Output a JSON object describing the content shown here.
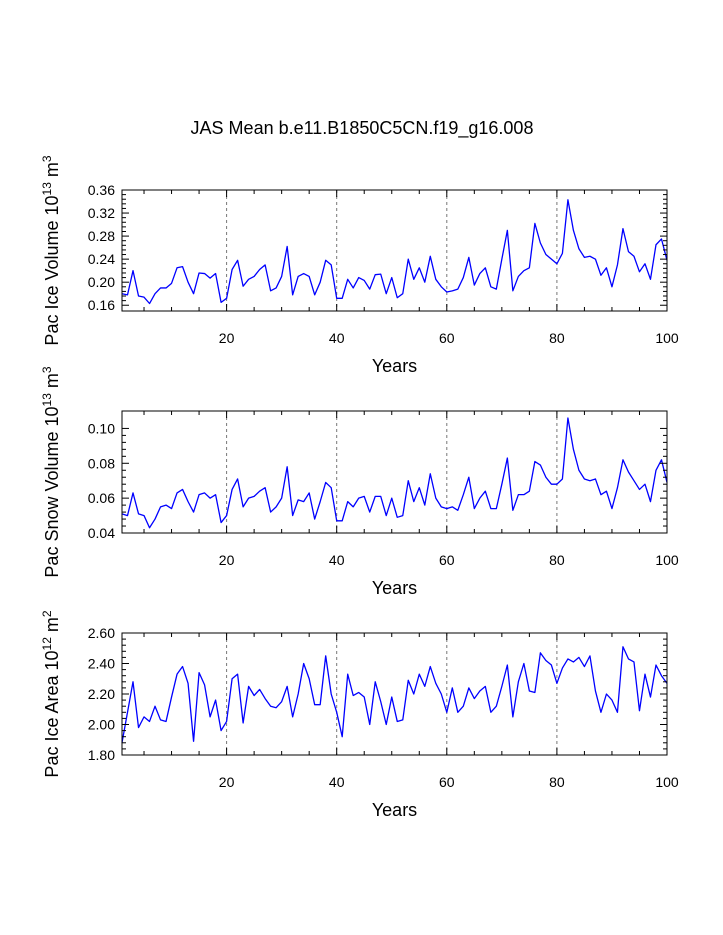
{
  "title": "JAS Mean b.e11.B1850C5CN.f19_g16.008",
  "line_color": "#0000ff",
  "chart_data": [
    {
      "type": "line",
      "ylabel": "Pac Ice Volume 10",
      "ylabel_exp": "13",
      "ylabel_unit": " m",
      "ylabel_unit_exp": "3",
      "xlabel": "Years",
      "xlim": [
        1,
        100
      ],
      "ylim": [
        0.15,
        0.36
      ],
      "yticks": [
        0.16,
        0.2,
        0.24,
        0.28,
        0.32,
        0.36
      ],
      "ytick_labels": [
        "0.16",
        "0.20",
        "0.24",
        "0.28",
        "0.32",
        "0.36"
      ],
      "xticks": [
        20,
        40,
        60,
        80,
        100
      ],
      "xtick_labels": [
        "20",
        "40",
        "60",
        "80",
        "100"
      ],
      "ref_lines": [
        20,
        40,
        60,
        80
      ],
      "series": [
        {
          "name": "Pac Ice Volume",
          "values": [
            0.18,
            0.178,
            0.22,
            0.176,
            0.174,
            0.163,
            0.18,
            0.19,
            0.19,
            0.198,
            0.225,
            0.227,
            0.2,
            0.18,
            0.216,
            0.215,
            0.207,
            0.215,
            0.165,
            0.172,
            0.222,
            0.238,
            0.193,
            0.205,
            0.21,
            0.222,
            0.23,
            0.185,
            0.19,
            0.21,
            0.262,
            0.178,
            0.21,
            0.215,
            0.21,
            0.178,
            0.2,
            0.238,
            0.23,
            0.172,
            0.172,
            0.205,
            0.19,
            0.208,
            0.203,
            0.188,
            0.213,
            0.214,
            0.18,
            0.208,
            0.173,
            0.18,
            0.24,
            0.205,
            0.225,
            0.2,
            0.245,
            0.205,
            0.192,
            0.183,
            0.185,
            0.188,
            0.208,
            0.243,
            0.195,
            0.215,
            0.225,
            0.192,
            0.188,
            0.24,
            0.29,
            0.185,
            0.21,
            0.22,
            0.225,
            0.302,
            0.268,
            0.248,
            0.24,
            0.232,
            0.25,
            0.343,
            0.29,
            0.258,
            0.243,
            0.245,
            0.24,
            0.212,
            0.225,
            0.192,
            0.23,
            0.293,
            0.253,
            0.245,
            0.218,
            0.232,
            0.205,
            0.265,
            0.275,
            0.238
          ]
        }
      ]
    },
    {
      "type": "line",
      "ylabel": "Pac Snow Volume 10",
      "ylabel_exp": "13",
      "ylabel_unit": " m",
      "ylabel_unit_exp": "3",
      "xlabel": "Years",
      "xlim": [
        1,
        100
      ],
      "ylim": [
        0.04,
        0.11
      ],
      "yticks": [
        0.04,
        0.06,
        0.08,
        0.1
      ],
      "ytick_labels": [
        "0.04",
        "0.06",
        "0.08",
        "0.10"
      ],
      "xticks": [
        20,
        40,
        60,
        80,
        100
      ],
      "xtick_labels": [
        "20",
        "40",
        "60",
        "80",
        "100"
      ],
      "ref_lines": [
        20,
        40,
        60,
        80
      ],
      "series": [
        {
          "name": "Pac Snow Volume",
          "values": [
            0.051,
            0.05,
            0.063,
            0.051,
            0.05,
            0.043,
            0.048,
            0.055,
            0.056,
            0.054,
            0.063,
            0.065,
            0.058,
            0.052,
            0.062,
            0.063,
            0.06,
            0.062,
            0.046,
            0.05,
            0.065,
            0.071,
            0.055,
            0.06,
            0.061,
            0.064,
            0.066,
            0.052,
            0.055,
            0.06,
            0.078,
            0.05,
            0.059,
            0.058,
            0.063,
            0.048,
            0.058,
            0.069,
            0.066,
            0.047,
            0.047,
            0.058,
            0.055,
            0.06,
            0.061,
            0.052,
            0.061,
            0.061,
            0.05,
            0.06,
            0.049,
            0.05,
            0.07,
            0.058,
            0.066,
            0.056,
            0.074,
            0.06,
            0.055,
            0.054,
            0.055,
            0.053,
            0.062,
            0.072,
            0.054,
            0.06,
            0.064,
            0.054,
            0.054,
            0.068,
            0.083,
            0.053,
            0.062,
            0.062,
            0.064,
            0.081,
            0.079,
            0.072,
            0.068,
            0.068,
            0.071,
            0.106,
            0.088,
            0.076,
            0.071,
            0.07,
            0.071,
            0.062,
            0.064,
            0.054,
            0.066,
            0.082,
            0.075,
            0.07,
            0.065,
            0.068,
            0.058,
            0.076,
            0.082,
            0.069
          ]
        }
      ]
    },
    {
      "type": "line",
      "ylabel": "Pac Ice Area 10",
      "ylabel_exp": "12",
      "ylabel_unit": " m",
      "ylabel_unit_exp": "2",
      "xlabel": "Years",
      "xlim": [
        1,
        100
      ],
      "ylim": [
        1.8,
        2.6
      ],
      "yticks": [
        1.8,
        2.0,
        2.2,
        2.4,
        2.6
      ],
      "ytick_labels": [
        "1.80",
        "2.00",
        "2.20",
        "2.40",
        "2.60"
      ],
      "xticks": [
        20,
        40,
        60,
        80,
        100
      ],
      "xtick_labels": [
        "20",
        "40",
        "60",
        "80",
        "100"
      ],
      "ref_lines": [
        20,
        40,
        60,
        80
      ],
      "series": [
        {
          "name": "Pac Ice Area",
          "values": [
            1.88,
            2.08,
            2.28,
            1.98,
            2.05,
            2.02,
            2.12,
            2.03,
            2.02,
            2.18,
            2.33,
            2.38,
            2.27,
            1.89,
            2.34,
            2.26,
            2.05,
            2.16,
            1.96,
            2.02,
            2.3,
            2.33,
            2.01,
            2.25,
            2.19,
            2.23,
            2.17,
            2.12,
            2.11,
            2.15,
            2.25,
            2.05,
            2.2,
            2.4,
            2.3,
            2.13,
            2.13,
            2.45,
            2.2,
            2.08,
            1.92,
            2.33,
            2.19,
            2.21,
            2.18,
            2.0,
            2.28,
            2.15,
            2.0,
            2.18,
            2.02,
            2.03,
            2.29,
            2.2,
            2.33,
            2.25,
            2.38,
            2.27,
            2.2,
            2.08,
            2.24,
            2.08,
            2.12,
            2.24,
            2.17,
            2.22,
            2.25,
            2.08,
            2.12,
            2.25,
            2.39,
            2.05,
            2.28,
            2.4,
            2.22,
            2.21,
            2.47,
            2.42,
            2.39,
            2.27,
            2.37,
            2.43,
            2.41,
            2.44,
            2.38,
            2.45,
            2.22,
            2.08,
            2.2,
            2.16,
            2.08,
            2.51,
            2.43,
            2.41,
            2.09,
            2.33,
            2.18,
            2.39,
            2.32,
            2.27
          ]
        }
      ]
    }
  ]
}
